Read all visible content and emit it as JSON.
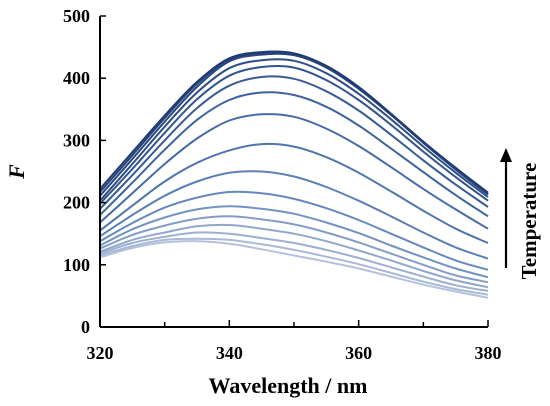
{
  "chart_data": {
    "type": "line",
    "title": "",
    "xlabel": "Wavelength / nm",
    "ylabel": "F",
    "xlim": [
      320,
      380
    ],
    "ylim": [
      0,
      500
    ],
    "xticks": [
      320,
      340,
      360,
      380
    ],
    "yticks": [
      0,
      100,
      200,
      300,
      400,
      500
    ],
    "grid": false,
    "legend": "none",
    "annotation": "Temperature",
    "annotation_direction": "up",
    "x": [
      320,
      325,
      330,
      335,
      340,
      345,
      350,
      355,
      360,
      365,
      370,
      375,
      380
    ],
    "series": [
      {
        "color": "#b4c2dc",
        "values": [
          112,
          127,
          136,
          138,
          134,
          125,
          115,
          105,
          94,
          81,
          68,
          57,
          47
        ]
      },
      {
        "color": "#aab9d6",
        "values": [
          115,
          130,
          140,
          142,
          140,
          133,
          124,
          113,
          101,
          87,
          73,
          61,
          52
        ]
      },
      {
        "color": "#9db0d1",
        "values": [
          118,
          135,
          145,
          152,
          150,
          143,
          135,
          124,
          111,
          96,
          81,
          67,
          58
        ]
      },
      {
        "color": "#91a7cc",
        "values": [
          121,
          140,
          152,
          162,
          164,
          158,
          150,
          138,
          123,
          107,
          90,
          75,
          64
        ]
      },
      {
        "color": "#839dc7",
        "values": [
          126,
          148,
          163,
          174,
          178,
          173,
          165,
          152,
          136,
          118,
          100,
          83,
          72
        ]
      },
      {
        "color": "#7493c1",
        "values": [
          131,
          157,
          176,
          189,
          194,
          190,
          182,
          168,
          151,
          131,
          112,
          94,
          80
        ]
      },
      {
        "color": "#6689bb",
        "values": [
          138,
          167,
          192,
          208,
          217,
          215,
          206,
          191,
          172,
          150,
          128,
          107,
          92
        ]
      },
      {
        "color": "#5a80b5",
        "values": [
          146,
          180,
          211,
          234,
          248,
          250,
          242,
          225,
          203,
          178,
          152,
          128,
          110
        ]
      },
      {
        "color": "#4f76ae",
        "values": [
          155,
          195,
          234,
          264,
          284,
          294,
          290,
          273,
          248,
          218,
          187,
          158,
          135
        ]
      },
      {
        "color": "#456ca6",
        "values": [
          168,
          215,
          262,
          303,
          332,
          342,
          338,
          319,
          291,
          257,
          222,
          189,
          158
        ]
      },
      {
        "color": "#3d639e",
        "values": [
          180,
          232,
          285,
          333,
          365,
          377,
          373,
          354,
          324,
          287,
          249,
          212,
          178
        ]
      },
      {
        "color": "#375b97",
        "values": [
          190,
          244,
          300,
          352,
          388,
          402,
          399,
          379,
          348,
          309,
          268,
          229,
          193
        ]
      },
      {
        "color": "#32548f",
        "values": [
          198,
          254,
          312,
          366,
          404,
          418,
          417,
          397,
          365,
          325,
          282,
          241,
          203
        ]
      },
      {
        "color": "#2d4d87",
        "values": [
          203,
          262,
          322,
          377,
          416,
          429,
          428,
          408,
          375,
          334,
          290,
          248,
          209
        ]
      },
      {
        "color": "#294780",
        "values": [
          211,
          270,
          330,
          386,
          427,
          438,
          437,
          417,
          383,
          341,
          296,
          253,
          213
        ]
      },
      {
        "color": "#25427a",
        "values": [
          217,
          276,
          336,
          391,
          430,
          440,
          438,
          418,
          384,
          342,
          297,
          254,
          214
        ]
      },
      {
        "color": "#213c73",
        "values": [
          222,
          281,
          340,
          394,
          432,
          442,
          440,
          420,
          386,
          343,
          298,
          256,
          216
        ]
      }
    ]
  }
}
